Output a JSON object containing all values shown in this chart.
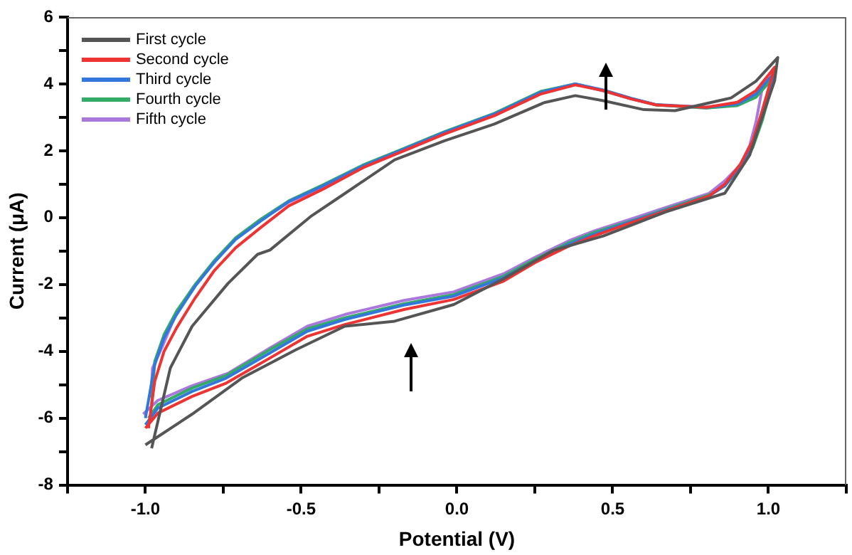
{
  "chart_data": {
    "type": "line",
    "xlabel": "Potential (V)",
    "ylabel": "Current (μA)",
    "xlim": [
      -1.25,
      1.25
    ],
    "xticks": [
      {
        "value": -1.25,
        "label": null
      },
      {
        "value": -1.0,
        "label": "-1.0"
      },
      {
        "value": -0.75,
        "label": null
      },
      -0.5,
      {
        "value": -0.25,
        "label": null
      },
      {
        "value": 0.0,
        "label": "0.0"
      },
      {
        "value": 0.25,
        "label": null
      },
      0.5,
      {
        "value": 0.75,
        "label": null
      },
      {
        "value": 1.0,
        "label": "1.0"
      },
      {
        "value": 1.25,
        "label": null
      }
    ],
    "ylim": [
      -8,
      6
    ],
    "yticks": [
      -8,
      {
        "value": -7,
        "label": null
      },
      -6,
      {
        "value": -5,
        "label": null
      },
      -4,
      {
        "value": -3,
        "label": null
      },
      -2,
      {
        "value": -1,
        "label": null
      },
      0,
      {
        "value": 1,
        "label": null
      },
      2,
      {
        "value": 3,
        "label": null
      },
      4,
      {
        "value": 5,
        "label": null
      },
      6
    ],
    "grid": false,
    "legend": "top left",
    "marker": "none",
    "line_style": "solid",
    "series": [
      {
        "name": "First cycle",
        "color": "#555555",
        "x": [
          -0.98,
          -0.92,
          -0.85,
          -0.735,
          -0.64,
          -0.6,
          -0.47,
          -0.36,
          -0.2,
          -0.04,
          0.12,
          0.28,
          0.38,
          0.47,
          0.6,
          0.7,
          0.88,
          0.96,
          1.03,
          1.02,
          0.98,
          0.94,
          0.86,
          0.67,
          0.47,
          0.31,
          0.15,
          -0.01,
          -0.2,
          -0.36,
          -0.52,
          -0.69,
          -0.85,
          -1.0
        ],
        "values": [
          -6.9,
          -4.5,
          -3.25,
          -1.97,
          -1.1,
          -0.97,
          0.03,
          0.72,
          1.73,
          2.3,
          2.8,
          3.44,
          3.65,
          3.5,
          3.23,
          3.2,
          3.58,
          4.08,
          4.79,
          4.1,
          3.0,
          1.87,
          0.73,
          0.17,
          -0.55,
          -0.98,
          -1.83,
          -2.6,
          -3.1,
          -3.25,
          -3.97,
          -4.8,
          -5.88,
          -6.8
        ]
      },
      {
        "name": "Second cycle",
        "color": "#ee3333",
        "x": [
          -0.99,
          -0.97,
          -0.94,
          -0.9,
          -0.84,
          -0.78,
          -0.71,
          -0.63,
          -0.54,
          -0.43,
          -0.3,
          -0.17,
          -0.04,
          0.12,
          0.27,
          0.38,
          0.47,
          0.56,
          0.64,
          0.8,
          0.9,
          0.96,
          1.02,
          0.98,
          0.95,
          0.91,
          0.86,
          0.81,
          0.67,
          0.56,
          0.44,
          0.36,
          0.25,
          0.15,
          -0.01,
          -0.17,
          -0.36,
          -0.48,
          -0.6,
          -0.74,
          -0.85,
          -0.96,
          -1.0
        ],
        "values": [
          -6.3,
          -4.9,
          -4.0,
          -3.3,
          -2.4,
          -1.6,
          -0.9,
          -0.3,
          0.35,
          0.85,
          1.5,
          2.0,
          2.5,
          3.05,
          3.7,
          3.97,
          3.8,
          3.55,
          3.37,
          3.3,
          3.45,
          3.8,
          4.5,
          3.2,
          2.3,
          1.6,
          1.0,
          0.65,
          0.2,
          -0.15,
          -0.55,
          -0.85,
          -1.35,
          -1.9,
          -2.45,
          -2.75,
          -3.2,
          -3.55,
          -4.2,
          -4.95,
          -5.35,
          -5.85,
          -6.3
        ]
      },
      {
        "name": "Third cycle",
        "color": "#3377dd",
        "x": [
          -1.0,
          -0.97,
          -0.94,
          -0.9,
          -0.84,
          -0.78,
          -0.71,
          -0.63,
          -0.54,
          -0.43,
          -0.3,
          -0.17,
          -0.04,
          0.12,
          0.27,
          0.38,
          0.47,
          0.56,
          0.64,
          0.8,
          0.9,
          0.96,
          1.02,
          0.98,
          0.95,
          0.91,
          0.86,
          0.81,
          0.67,
          0.56,
          0.44,
          0.36,
          0.25,
          0.15,
          -0.01,
          -0.17,
          -0.36,
          -0.48,
          -0.6,
          -0.74,
          -0.85,
          -0.96,
          -1.0
        ],
        "values": [
          -6.0,
          -4.4,
          -3.6,
          -2.9,
          -2.05,
          -1.35,
          -0.65,
          -0.1,
          0.48,
          0.95,
          1.55,
          2.05,
          2.55,
          3.1,
          3.75,
          4.0,
          3.82,
          3.57,
          3.38,
          3.3,
          3.4,
          3.7,
          4.35,
          3.0,
          2.2,
          1.55,
          0.95,
          0.65,
          0.22,
          -0.12,
          -0.5,
          -0.8,
          -1.3,
          -1.8,
          -2.35,
          -2.62,
          -3.05,
          -3.4,
          -4.05,
          -4.8,
          -5.2,
          -5.7,
          -6.2
        ]
      },
      {
        "name": "Fourth cycle",
        "color": "#33aa66",
        "x": [
          -0.98,
          -0.97,
          -0.94,
          -0.9,
          -0.84,
          -0.78,
          -0.71,
          -0.63,
          -0.54,
          -0.43,
          -0.3,
          -0.17,
          -0.04,
          0.12,
          0.27,
          0.38,
          0.47,
          0.56,
          0.64,
          0.8,
          0.9,
          0.96,
          1.02,
          0.98,
          0.95,
          0.91,
          0.86,
          0.81,
          0.67,
          0.56,
          0.44,
          0.36,
          0.25,
          0.15,
          -0.01,
          -0.17,
          -0.36,
          -0.48,
          -0.6,
          -0.74,
          -0.85,
          -0.96,
          -0.99
        ],
        "values": [
          -5.6,
          -4.3,
          -3.5,
          -2.8,
          -2.0,
          -1.3,
          -0.6,
          -0.05,
          0.5,
          0.98,
          1.58,
          2.07,
          2.57,
          3.12,
          3.78,
          4.0,
          3.8,
          3.56,
          3.37,
          3.28,
          3.35,
          3.6,
          4.25,
          2.9,
          2.1,
          1.5,
          0.95,
          0.68,
          0.25,
          -0.1,
          -0.45,
          -0.75,
          -1.25,
          -1.75,
          -2.3,
          -2.58,
          -3.0,
          -3.33,
          -3.95,
          -4.72,
          -5.1,
          -5.6,
          -6.0
        ]
      },
      {
        "name": "Fifth cycle",
        "color": "#aa77dd",
        "x": [
          -0.983,
          -0.977,
          -0.943,
          -0.905,
          -0.847,
          -0.784,
          -0.718,
          -0.639,
          -0.54,
          -0.426,
          -0.3,
          -0.17,
          -0.04,
          0.12,
          0.27,
          0.38,
          0.47,
          0.56,
          0.64,
          0.8,
          0.9,
          0.96,
          1.016,
          0.98,
          0.96,
          0.94,
          0.91,
          0.86,
          0.81,
          0.67,
          0.56,
          0.44,
          0.36,
          0.25,
          0.15,
          -0.01,
          -0.17,
          -0.36,
          -0.48,
          -0.6,
          -0.735,
          -0.85,
          -0.96,
          -1.007
        ],
        "values": [
          -5.38,
          -4.5,
          -3.8,
          -2.95,
          -2.1,
          -1.4,
          -0.69,
          -0.13,
          0.46,
          0.93,
          1.53,
          2.0,
          2.51,
          3.07,
          3.72,
          4.0,
          3.79,
          3.55,
          3.37,
          3.28,
          3.37,
          3.66,
          4.14,
          3.87,
          2.86,
          2.16,
          1.58,
          1.1,
          0.73,
          0.3,
          -0.04,
          -0.4,
          -0.69,
          -1.19,
          -1.68,
          -2.22,
          -2.48,
          -2.9,
          -3.25,
          -3.9,
          -4.66,
          -5.03,
          -5.47,
          -5.88
        ]
      }
    ]
  }
}
